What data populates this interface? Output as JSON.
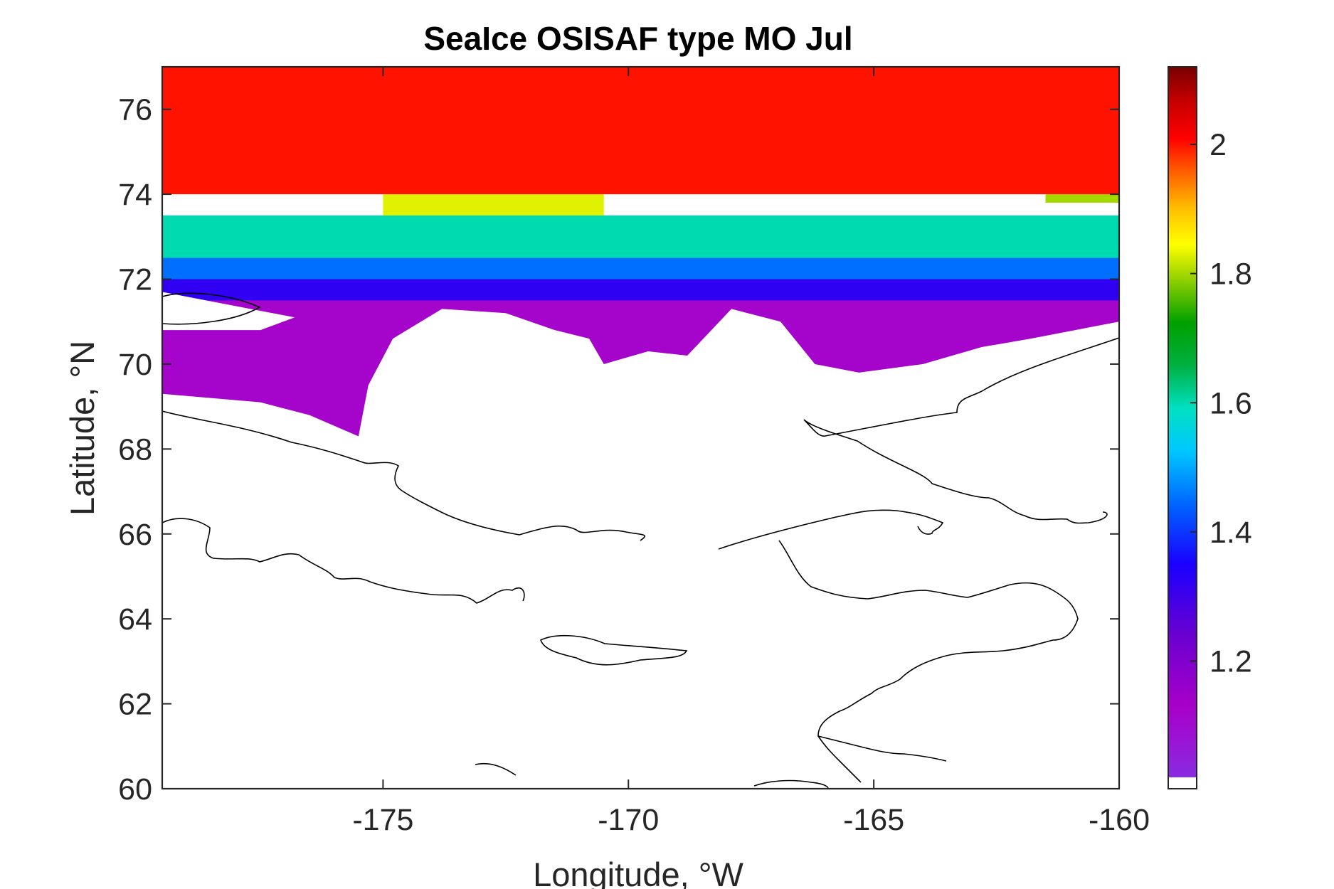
{
  "chart_data": {
    "type": "heatmap",
    "title": "SeaIce OSISAF type MO Jul",
    "xlabel": "Longitude, °W",
    "ylabel": "Latitude, °N",
    "xlim": [
      -179.5,
      -160
    ],
    "ylim": [
      60,
      77
    ],
    "x_ticks": [
      -175,
      -170,
      -165,
      -160
    ],
    "x_tick_labels": [
      "-175",
      "-170",
      "-165",
      "-160"
    ],
    "y_ticks": [
      60,
      62,
      64,
      66,
      68,
      70,
      72,
      74,
      76
    ],
    "y_tick_labels": [
      "60",
      "62",
      "64",
      "66",
      "68",
      "70",
      "72",
      "74",
      "76"
    ],
    "colorbar": {
      "range": [
        1.02,
        2.12
      ],
      "ticks": [
        1.2,
        1.4,
        1.6,
        1.8,
        2
      ],
      "tick_labels": [
        "1.2",
        "1.4",
        "1.6",
        "1.8",
        "2"
      ],
      "colormap": "jet-like (purple-blue-cyan-green-yellow-red-darkred)"
    },
    "regions": [
      {
        "description": "northern basin",
        "lat_range": [
          74,
          77
        ],
        "lon_range": [
          -179.5,
          -160
        ],
        "value": 2.0
      },
      {
        "description": "yellow band west",
        "lat_range": [
          73.5,
          74.2
        ],
        "lon_range": [
          -175,
          -170.5
        ],
        "value": 1.83
      },
      {
        "description": "yellow patch east",
        "lat_range": [
          73.8,
          74.8
        ],
        "lon_range": [
          -161.5,
          -160
        ],
        "value": 1.8
      },
      {
        "description": "green band",
        "lat_range": [
          72.5,
          73.5
        ],
        "lon_range": [
          -179.5,
          -160
        ],
        "value": 1.6
      },
      {
        "description": "cyan band",
        "lat_range": [
          72,
          73
        ],
        "lon_range": [
          -179.5,
          -160
        ],
        "value": 1.45
      },
      {
        "description": "blue band",
        "lat_range": [
          71.5,
          72.5
        ],
        "lon_range": [
          -179.5,
          -160
        ],
        "value": 1.32
      },
      {
        "description": "purple margin",
        "lat_range": [
          68.3,
          72
        ],
        "lon_range": [
          -179.5,
          -160
        ],
        "value": 1.12
      }
    ],
    "grid": false,
    "legend": "none"
  }
}
